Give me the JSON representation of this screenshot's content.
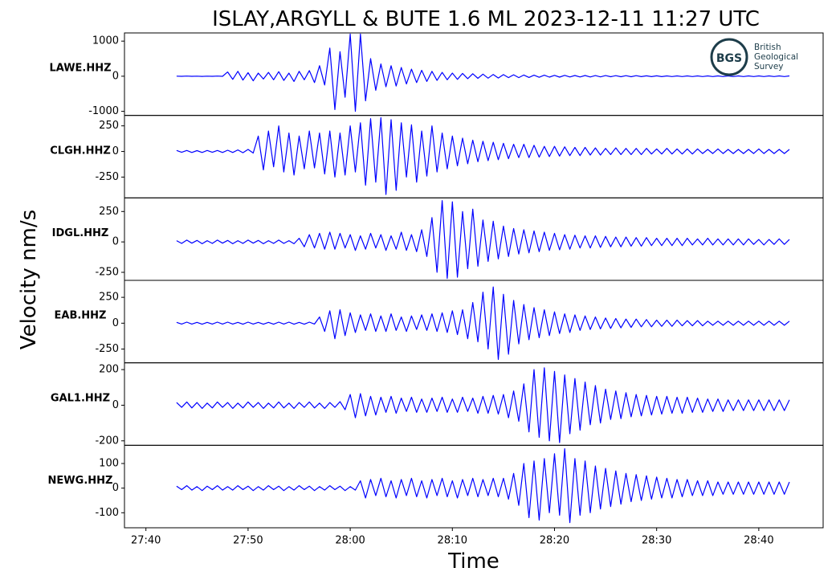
{
  "figure": {
    "title": "ISLAY,ARGYLL & BUTE 1.6 ML   2023-12-11 11:27 UTC",
    "ylabel": "Velocity nm/s",
    "xlabel": "Time",
    "xlim": [
      37.9,
      106.3
    ],
    "xticks": [
      {
        "value": 40,
        "label": "27:40"
      },
      {
        "value": 50,
        "label": "27:50"
      },
      {
        "value": 60,
        "label": "28:00"
      },
      {
        "value": 70,
        "label": "28:10"
      },
      {
        "value": 80,
        "label": "28:20"
      },
      {
        "value": 90,
        "label": "28:30"
      },
      {
        "value": 100,
        "label": "28:40"
      }
    ],
    "x": [
      43,
      43.5,
      44,
      44.5,
      45,
      45.5,
      46,
      46.5,
      47,
      47.5,
      48,
      48.5,
      49,
      49.5,
      50,
      50.5,
      51,
      51.5,
      52,
      52.5,
      53,
      53.5,
      54,
      54.5,
      55,
      55.5,
      56,
      56.5,
      57,
      57.5,
      58,
      58.5,
      59,
      59.5,
      60,
      60.5,
      61,
      61.5,
      62,
      62.5,
      63,
      63.5,
      64,
      64.5,
      65,
      65.5,
      66,
      66.5,
      67,
      67.5,
      68,
      68.5,
      69,
      69.5,
      70,
      70.5,
      71,
      71.5,
      72,
      72.5,
      73,
      73.5,
      74,
      74.5,
      75,
      75.5,
      76,
      76.5,
      77,
      77.5,
      78,
      78.5,
      79,
      79.5,
      80,
      80.5,
      81,
      81.5,
      82,
      82.5,
      83,
      83.5,
      84,
      84.5,
      85,
      85.5,
      86,
      86.5,
      87,
      87.5,
      88,
      88.5,
      89,
      89.5,
      90,
      90.5,
      91,
      91.5,
      92,
      92.5,
      93,
      93.5,
      94,
      94.5,
      95,
      95.5,
      96,
      96.5,
      97,
      97.5,
      98,
      98.5,
      99,
      99.5,
      100,
      100.5,
      101,
      101.5,
      102,
      102.5,
      103
    ]
  },
  "logo": {
    "abbr": "BGS",
    "lines": [
      "British",
      "Geological",
      "Survey"
    ]
  },
  "chart_data": [
    {
      "type": "line",
      "station": "LAWE.HHZ",
      "color": "#0000ff",
      "ylim": [
        -1116,
        1233
      ],
      "yticks": [
        -1000,
        0,
        1000
      ],
      "values": [
        3,
        -3,
        4,
        -2,
        3,
        -4,
        2,
        -3,
        4,
        -3,
        120,
        -90,
        140,
        -110,
        100,
        -130,
        90,
        -80,
        110,
        -100,
        130,
        -120,
        90,
        -150,
        140,
        -100,
        160,
        -180,
        300,
        -250,
        800,
        -950,
        700,
        -600,
        1200,
        -1000,
        1200,
        -700,
        500,
        -400,
        350,
        -300,
        300,
        -280,
        250,
        -220,
        200,
        -180,
        170,
        -150,
        140,
        -120,
        110,
        -100,
        90,
        -90,
        80,
        -70,
        70,
        -60,
        60,
        -55,
        50,
        -50,
        45,
        -40,
        40,
        -40,
        35,
        -35,
        30,
        -30,
        30,
        -25,
        25,
        -25,
        25,
        -20,
        20,
        -20,
        20,
        -20,
        18,
        -18,
        18,
        -15,
        15,
        -15,
        15,
        -15,
        15,
        -12,
        12,
        -12,
        12,
        -12,
        10,
        -10,
        10,
        -10,
        10,
        -10,
        10,
        -10,
        10,
        -10,
        10,
        -10,
        10,
        -10,
        10,
        -10,
        10,
        -10,
        10,
        -10,
        10,
        -10,
        10,
        -10,
        10
      ]
    },
    {
      "type": "line",
      "station": "CLGH.HHZ",
      "color": "#0000ff",
      "ylim": [
        -453,
        352
      ],
      "yticks": [
        -250,
        0,
        250
      ],
      "values": [
        10,
        -8,
        10,
        -10,
        8,
        -10,
        10,
        -8,
        10,
        -10,
        12,
        -10,
        15,
        -12,
        20,
        -15,
        150,
        -180,
        200,
        -150,
        250,
        -200,
        180,
        -230,
        150,
        -170,
        200,
        -160,
        180,
        -220,
        200,
        -250,
        180,
        -230,
        250,
        -200,
        280,
        -330,
        320,
        -300,
        330,
        -420,
        310,
        -380,
        280,
        -250,
        260,
        -300,
        200,
        -240,
        250,
        -200,
        180,
        -170,
        150,
        -140,
        130,
        -120,
        110,
        -100,
        100,
        -90,
        90,
        -80,
        80,
        -70,
        70,
        -60,
        70,
        -60,
        60,
        -55,
        50,
        -50,
        50,
        -45,
        45,
        -40,
        40,
        -40,
        40,
        -35,
        35,
        -35,
        30,
        -30,
        35,
        -30,
        30,
        -30,
        30,
        -30,
        30,
        -25,
        25,
        -25,
        30,
        -25,
        25,
        -25,
        25,
        -25,
        25,
        -20,
        20,
        -20,
        25,
        -20,
        20,
        -20,
        20,
        -20,
        20,
        -20,
        25,
        -20,
        20,
        -20,
        20,
        -20,
        20
      ]
    },
    {
      "type": "line",
      "station": "IDGL.HHZ",
      "color": "#0000ff",
      "ylim": [
        -316,
        362
      ],
      "yticks": [
        -250,
        0,
        250
      ],
      "values": [
        10,
        -12,
        15,
        -10,
        12,
        -15,
        10,
        -12,
        15,
        -10,
        12,
        -15,
        10,
        -12,
        15,
        -10,
        12,
        -15,
        10,
        -12,
        15,
        -12,
        10,
        -15,
        30,
        -40,
        60,
        -50,
        70,
        -60,
        80,
        -60,
        70,
        -50,
        60,
        -70,
        50,
        -60,
        70,
        -50,
        60,
        -70,
        50,
        -60,
        80,
        -70,
        60,
        -80,
        100,
        -120,
        200,
        -250,
        340,
        -300,
        330,
        -290,
        250,
        -220,
        270,
        -200,
        180,
        -160,
        170,
        -140,
        130,
        -120,
        110,
        -100,
        100,
        -90,
        90,
        -80,
        80,
        -70,
        70,
        -65,
        60,
        -60,
        55,
        -50,
        50,
        -50,
        50,
        -45,
        45,
        -40,
        40,
        -40,
        40,
        -35,
        35,
        -35,
        35,
        -30,
        30,
        -30,
        30,
        -30,
        30,
        -30,
        30,
        -25,
        25,
        -25,
        30,
        -25,
        25,
        -25,
        25,
        -25,
        25,
        -25,
        25,
        -20,
        20,
        -25,
        20,
        -20,
        25,
        -20,
        20
      ]
    },
    {
      "type": "line",
      "station": "EAB.HHZ",
      "color": "#0000ff",
      "ylim": [
        -383,
        414
      ],
      "yticks": [
        -250,
        0,
        250
      ],
      "values": [
        8,
        -8,
        10,
        -8,
        8,
        -10,
        8,
        -8,
        10,
        -8,
        10,
        -8,
        8,
        -10,
        10,
        -8,
        8,
        -10,
        8,
        -10,
        10,
        -8,
        10,
        -10,
        8,
        -10,
        10,
        -8,
        60,
        -80,
        120,
        -150,
        130,
        -120,
        100,
        -90,
        80,
        -70,
        90,
        -80,
        70,
        -80,
        90,
        -70,
        60,
        -80,
        70,
        -60,
        80,
        -70,
        90,
        -80,
        100,
        -90,
        120,
        -110,
        130,
        -150,
        200,
        -180,
        300,
        -250,
        350,
        -350,
        280,
        -300,
        220,
        -200,
        180,
        -160,
        150,
        -140,
        130,
        -120,
        110,
        -100,
        90,
        -90,
        80,
        -70,
        70,
        -60,
        60,
        -55,
        50,
        -50,
        45,
        -45,
        40,
        -40,
        40,
        -35,
        35,
        -35,
        30,
        -30,
        30,
        -30,
        30,
        -25,
        25,
        -25,
        25,
        -25,
        20,
        -20,
        20,
        -20,
        20,
        -20,
        20,
        -20,
        20,
        -20,
        20,
        -20,
        20,
        -20,
        20,
        -20,
        20
      ]
    },
    {
      "type": "line",
      "station": "GAL1.HHZ",
      "color": "#0000ff",
      "ylim": [
        -225,
        238
      ],
      "yticks": [
        -200,
        0,
        200
      ],
      "values": [
        15,
        -12,
        18,
        -15,
        15,
        -18,
        12,
        -15,
        18,
        -12,
        15,
        -18,
        12,
        -15,
        18,
        -12,
        15,
        -18,
        12,
        -15,
        18,
        -15,
        12,
        -18,
        15,
        -12,
        18,
        -15,
        12,
        -18,
        15,
        -12,
        20,
        -25,
        60,
        -70,
        65,
        -60,
        50,
        -55,
        45,
        -40,
        50,
        -45,
        40,
        -35,
        45,
        -40,
        35,
        -40,
        40,
        -35,
        45,
        -40,
        35,
        -40,
        45,
        -35,
        40,
        -45,
        50,
        -45,
        55,
        -50,
        60,
        -70,
        80,
        -90,
        120,
        -150,
        200,
        -180,
        210,
        -200,
        190,
        -210,
        170,
        -160,
        150,
        -140,
        130,
        -110,
        110,
        -100,
        90,
        -80,
        80,
        -75,
        70,
        -65,
        60,
        -60,
        55,
        -55,
        50,
        -50,
        50,
        -45,
        45,
        -45,
        45,
        -40,
        40,
        -40,
        35,
        -35,
        35,
        -35,
        30,
        -30,
        30,
        -30,
        30,
        -30,
        30,
        -30,
        30,
        -30,
        30,
        -30,
        30
      ]
    },
    {
      "type": "line",
      "station": "NEWG.HHZ",
      "color": "#0000ff",
      "ylim": [
        -161,
        174
      ],
      "yticks": [
        -100,
        0,
        100
      ],
      "values": [
        8,
        -6,
        10,
        -8,
        6,
        -10,
        8,
        -6,
        10,
        -8,
        6,
        -8,
        10,
        -6,
        8,
        -10,
        6,
        -8,
        10,
        -6,
        8,
        -10,
        6,
        -8,
        10,
        -6,
        8,
        -10,
        6,
        -8,
        10,
        -6,
        8,
        -10,
        6,
        -8,
        30,
        -40,
        35,
        -30,
        40,
        -35,
        30,
        -40,
        35,
        -30,
        40,
        -35,
        30,
        -40,
        35,
        -30,
        40,
        -35,
        30,
        -40,
        35,
        -30,
        40,
        -35,
        35,
        -30,
        40,
        -35,
        40,
        -45,
        60,
        -70,
        100,
        -120,
        110,
        -130,
        120,
        -100,
        140,
        -110,
        160,
        -140,
        120,
        -110,
        110,
        -100,
        90,
        -85,
        80,
        -75,
        70,
        -65,
        60,
        -55,
        55,
        -50,
        50,
        -45,
        45,
        -40,
        40,
        -40,
        35,
        -35,
        35,
        -30,
        30,
        -30,
        30,
        -30,
        25,
        -25,
        25,
        -25,
        25,
        -25,
        25,
        -25,
        25,
        -25,
        25,
        -25,
        25,
        -25,
        25
      ]
    }
  ]
}
